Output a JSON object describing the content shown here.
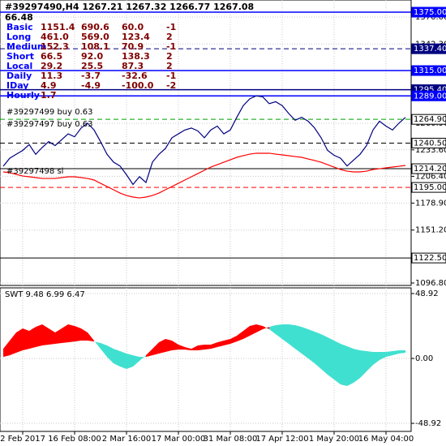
{
  "header": {
    "title": "#39297490,H4 1267.21 1267.32 1266.77 1267.08",
    "value": "66.48"
  },
  "info_table": {
    "rows": [
      [
        "Basic",
        "1151.4",
        "690.6",
        "60.0",
        "-1"
      ],
      [
        "Long",
        "461.0",
        "569.0",
        "123.4",
        "2"
      ],
      [
        "Medium",
        "152.3",
        "108.1",
        "70.9",
        "-1"
      ],
      [
        "Short",
        "66.5",
        "92.0",
        "138.3",
        "2"
      ],
      [
        "Local",
        "29.2",
        "25.5",
        "87.3",
        "2"
      ],
      [
        "Daily",
        "11.3",
        "-3.7",
        "-32.6",
        "-1"
      ],
      [
        "IDay",
        "4.9",
        "-4.9",
        "-100.0",
        "-2"
      ],
      [
        "Hourly",
        "1.7"
      ]
    ]
  },
  "chart_data": [
    {
      "type": "line",
      "categories": [
        null,
        null,
        null,
        "2 Feb 2017",
        null,
        null,
        null,
        null,
        null,
        null,
        null,
        "16 Feb 08:00",
        null,
        null,
        null,
        null,
        null,
        null,
        null,
        "2 Mar 16:00",
        null,
        null,
        null,
        null,
        null,
        null,
        null,
        "17 Mar 00:00",
        null,
        null,
        null,
        null,
        null,
        null,
        null,
        "31 Mar 08:00",
        null,
        null,
        null,
        null,
        null,
        null,
        null,
        "17 Apr 12:00",
        null,
        null,
        null,
        null,
        null,
        null,
        null,
        "1 May 20:00",
        null,
        null,
        null,
        null,
        null,
        null,
        null,
        "16 May 04:00",
        null,
        null,
        null
      ],
      "series": [
        {
          "color": "#ff0000",
          "values": [
            1210.9,
            1210.1,
            1208.4,
            1206.7,
            1205.9,
            1205.1,
            1204.2,
            1204.2,
            1204.2,
            1205.1,
            1205.9,
            1205.9,
            1205.1,
            1204.2,
            1202.6,
            1199.2,
            1195.9,
            1192.6,
            1189.2,
            1186.7,
            1185.1,
            1184.2,
            1185.1,
            1186.7,
            1189.2,
            1192.6,
            1195.9,
            1199.2,
            1202.6,
            1205.9,
            1209.2,
            1212.6,
            1215.9,
            1218.4,
            1220.9,
            1223.4,
            1225.9,
            1227.6,
            1229.2,
            1230.1,
            1230.1,
            1230.1,
            1229.2,
            1228.4,
            1227.6,
            1226.7,
            1225.9,
            1224.2,
            1222.6,
            1220.9,
            1218.4,
            1215.9,
            1213.4,
            1211.7,
            1210.9,
            1210.9,
            1211.7,
            1213.4,
            1214.2,
            1215.1,
            1215.9,
            1216.7,
            1217.6
          ]
        },
        {
          "color": "#000080",
          "values": [
            1216.7,
            1225,
            1229,
            1233,
            1239,
            1229,
            1236,
            1242,
            1238,
            1244,
            1250,
            1247,
            1256,
            1261,
            1254,
            1242,
            1229,
            1221,
            1217,
            1208,
            1198,
            1206,
            1200,
            1221,
            1229,
            1235,
            1246,
            1250,
            1254,
            1256,
            1253,
            1246,
            1254,
            1258,
            1250,
            1254,
            1267,
            1279,
            1286,
            1289,
            1288,
            1281,
            1283,
            1279,
            1271,
            1264,
            1267,
            1263,
            1256,
            1246,
            1233,
            1228,
            1225,
            1217,
            1223,
            1229,
            1238,
            1254,
            1263,
            1258,
            1254,
            1261,
            1267
          ]
        }
      ],
      "ylim": [
        1094.3,
        1387.5
      ],
      "yticks": [
        {
          "value": 1370,
          "label": "1370.00"
        },
        {
          "value": 1342.3,
          "label": "1342.30"
        },
        {
          "value": 1260.9,
          "label": "1260.90"
        },
        {
          "value": 1233.6,
          "label": "1233.60"
        },
        {
          "value": 1206.4,
          "label": "1206.40"
        },
        {
          "value": 1178.9,
          "label": "1178.90"
        },
        {
          "value": 1151.2,
          "label": "1151.20"
        },
        {
          "value": 1096.8,
          "label": "1096.80"
        }
      ],
      "grid": true,
      "levels": [
        {
          "value": 1375,
          "label": "1375.00",
          "color": "#0000ff",
          "style": "solid",
          "box": "#0000ff"
        },
        {
          "value": 1337.4,
          "label": "1337.40",
          "color": "#000080",
          "style": "dashed",
          "box": "#000080"
        },
        {
          "value": 1315,
          "label": "1315.00",
          "color": "#0000ff",
          "style": "solid",
          "box": "#0000ff"
        },
        {
          "value": 1295.4,
          "label": "1295.40",
          "color": "#000080",
          "style": "solid",
          "box": "#000080"
        },
        {
          "value": 1289,
          "label": "1289.00",
          "color": "#0000ff",
          "style": "solid",
          "box": "#0000ff"
        },
        {
          "value": 1264.9,
          "label": "1264.90",
          "color": "#00a000",
          "style": "dashed",
          "box": "#ffffff"
        },
        {
          "value": 1240.5,
          "label": "1240.50",
          "color": "#000000",
          "style": "dashed",
          "box": "#ffffff"
        },
        {
          "value": 1214.2,
          "label": "1214.20",
          "color": "#000000",
          "style": "solid",
          "box": "#ffffff"
        },
        {
          "value": 1195,
          "label": "1195.00",
          "color": "#ff0000",
          "style": "dashed",
          "box": "#ffffff"
        },
        {
          "value": 1122.5,
          "label": "1122.50",
          "color": "#000000",
          "style": "solid",
          "box": "#ffffff"
        }
      ],
      "annotations": [
        "#39297499 buy 0.63",
        "#39297497 buy 0.63",
        "#39297498 sl"
      ]
    },
    {
      "type": "band",
      "title": "SWT 9.48 6.99 6.47",
      "series": [
        {
          "color": "#ff0000",
          "values": [
            7.3,
            13.5,
            19.6,
            22.6,
            20.8,
            23.8,
            25.7,
            22.6,
            19.6,
            22.6,
            25.7,
            24.5,
            22.6,
            19.6,
            13.5,
            7.3,
            1.2,
            -3.7,
            -6.1,
            -7.9,
            -6.1,
            -1.8,
            2.4,
            7.3,
            12.2,
            14.7,
            13.5,
            10.4,
            8.6,
            7.3,
            9.8,
            10.4,
            10.4,
            12.2,
            13.5,
            14.7,
            17.1,
            20.8,
            24.5,
            25.7,
            24.5,
            22.0,
            18.3,
            14.7,
            11.0,
            7.3,
            3.7,
            0,
            -3.7,
            -7.9,
            -12.2,
            -15.9,
            -19.6,
            -20.8,
            -18.3,
            -14.7,
            -9.8,
            -4.9,
            -1.2,
            1.2,
            2.4,
            3.7,
            4.3
          ]
        },
        {
          "color": "#40e0d0",
          "values": [
            1.2,
            2.4,
            4.3,
            6.1,
            7.3,
            8.6,
            9.8,
            10.4,
            11.0,
            11.6,
            12.2,
            12.8,
            13.5,
            13.5,
            12.8,
            11.6,
            9.8,
            7.3,
            5.5,
            3.7,
            2.4,
            1.2,
            1.2,
            2.4,
            3.7,
            4.9,
            6.1,
            6.7,
            6.7,
            6.1,
            6.1,
            6.7,
            7.3,
            8.6,
            9.8,
            11.0,
            12.8,
            14.7,
            17.1,
            19.6,
            22.0,
            23.8,
            25.1,
            25.7,
            25.7,
            25.1,
            23.8,
            22.0,
            20.2,
            18.3,
            15.9,
            13.5,
            11.0,
            9.2,
            7.3,
            6.1,
            5.5,
            4.9,
            4.9,
            4.9,
            5.5,
            6.1,
            6.1
          ]
        }
      ],
      "ylim": [
        -55.0,
        53.2
      ],
      "yticks": [
        48.92,
        {
          "value": 0,
          "label": "0.00"
        },
        -48.92
      ],
      "grid": true
    }
  ]
}
